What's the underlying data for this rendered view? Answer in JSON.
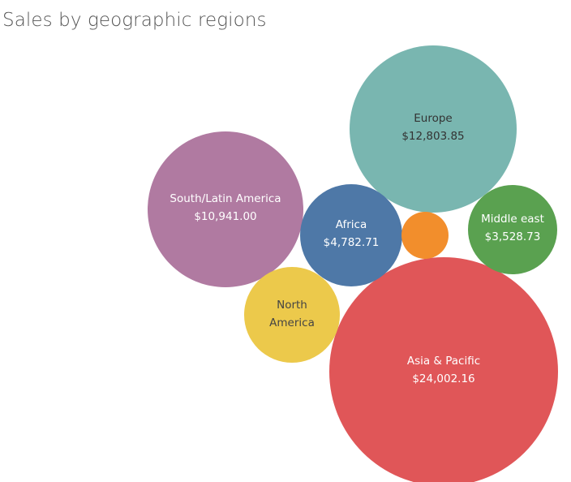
{
  "chart_data": {
    "type": "bubble",
    "title": "Sales by geographic regions",
    "series": [
      {
        "name": "Asia & Pacific",
        "value_label": "$24,002.16",
        "value": 24002.16,
        "color": "#e05658",
        "text_color": "#ffffff"
      },
      {
        "name": "Europe",
        "value_label": "$12,803.85",
        "value": 12803.85,
        "color": "#79b6b0",
        "text_color": "#333333"
      },
      {
        "name": "South/Latin America",
        "value_label": "$10,941.00",
        "value": 10941.0,
        "color": "#b07aa1",
        "text_color": "#ffffff"
      },
      {
        "name": "Africa",
        "value_label": "$4,782.71",
        "value": 4782.71,
        "color": "#4e78a7",
        "text_color": "#ffffff"
      },
      {
        "name": "Middle east",
        "value_label": "$3,528.73",
        "value": 3528.73,
        "color": "#5aa150",
        "text_color": "#ffffff"
      },
      {
        "name": "North America",
        "value_label": "",
        "color": "#ecc94b",
        "text_color": "#444444"
      },
      {
        "name": "",
        "value_label": "",
        "color": "#f28e2c",
        "text_color": "#ffffff"
      }
    ]
  }
}
